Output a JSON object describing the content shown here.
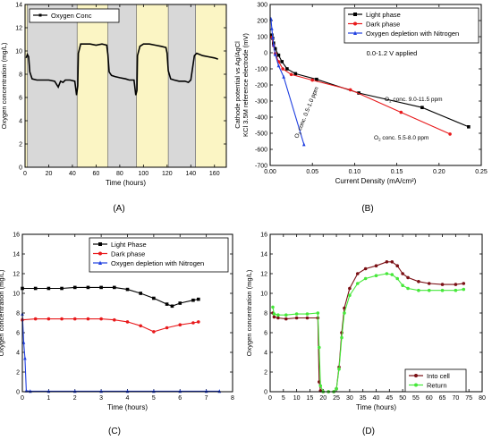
{
  "panel_labels": [
    "(A)",
    "(B)",
    "(C)",
    "(D)"
  ],
  "chart_data": [
    {
      "type": "line",
      "xlabel": "Time (hours)",
      "ylabel": "Oxygen concentration (mg/L)",
      "xlim": [
        0,
        170
      ],
      "ylim": [
        0,
        14
      ],
      "xticks": [
        0,
        20,
        40,
        60,
        80,
        100,
        120,
        140,
        160
      ],
      "yticks": [
        0,
        2,
        4,
        6,
        8,
        10,
        12,
        14
      ],
      "legend": {
        "position": "top-left",
        "entries": [
          "Oxygen Conc"
        ]
      },
      "bands": [
        {
          "from": 0,
          "to": 2,
          "color": "#fbf5c4"
        },
        {
          "from": 2,
          "to": 44,
          "color": "#d8d8d8"
        },
        {
          "from": 44,
          "to": 70,
          "color": "#fbf5c4"
        },
        {
          "from": 70,
          "to": 94,
          "color": "#d8d8d8"
        },
        {
          "from": 94,
          "to": 121,
          "color": "#fbf5c4"
        },
        {
          "from": 121,
          "to": 144,
          "color": "#d8d8d8"
        },
        {
          "from": 144,
          "to": 170,
          "color": "#fbf5c4"
        }
      ],
      "series": [
        {
          "name": "Oxygen Conc",
          "color": "#000000",
          "x": [
            1,
            2,
            3,
            4,
            6,
            10,
            15,
            20,
            25,
            28,
            30,
            32,
            34,
            38,
            42,
            43.5,
            44.5,
            45,
            47,
            50,
            55,
            60,
            65,
            69,
            70,
            71,
            73,
            76,
            80,
            85,
            88,
            92,
            93.5,
            94.5,
            95,
            97,
            100,
            105,
            110,
            115,
            119,
            120,
            121,
            123,
            126,
            130,
            135,
            138,
            140,
            143,
            145,
            150,
            155,
            160,
            163
          ],
          "y": [
            9.4,
            9.7,
            9.5,
            8.2,
            7.6,
            7.5,
            7.5,
            7.5,
            7.4,
            6.9,
            7.4,
            7.3,
            7.5,
            7.5,
            7.4,
            6.2,
            7.0,
            9.8,
            10.6,
            10.6,
            10.6,
            10.5,
            10.6,
            10.5,
            9.7,
            8.2,
            7.9,
            7.8,
            7.7,
            7.6,
            7.5,
            7.5,
            6.2,
            6.6,
            9.6,
            10.4,
            10.6,
            10.6,
            10.5,
            10.4,
            10.3,
            9.8,
            8.3,
            7.6,
            7.5,
            7.4,
            7.4,
            7.3,
            7.5,
            9.6,
            9.8,
            9.6,
            9.5,
            9.4,
            9.3
          ]
        }
      ]
    },
    {
      "type": "line",
      "xlabel": "Current Density (mA/cm²)",
      "ylabel": "Cathode potential vs Ag/AgCl KCl 3.5M reference electrode (mV)",
      "ylabel_lines": [
        "Cathode potential vs Ag/AgCl",
        "KCl 3.5M reference electrode (mV)"
      ],
      "xlim": [
        0,
        0.25
      ],
      "ylim": [
        -700,
        300
      ],
      "xticks": [
        0.0,
        0.05,
        0.1,
        0.15,
        0.2,
        0.25
      ],
      "xtick_labels": [
        "0.00",
        "0.05",
        "0.10",
        "0.15",
        "0.20",
        "0.25"
      ],
      "yticks": [
        -700,
        -600,
        -500,
        -400,
        -300,
        -200,
        -100,
        0,
        100,
        200,
        300
      ],
      "legend": {
        "position": "top-right",
        "entries": [
          "Light phase",
          "Dark phase",
          "Oxygen depletion with Nitrogen"
        ]
      },
      "annotations": [
        "0.0-1.2 V applied",
        "O₂ conc. 9.0-11.5 ppm",
        "O₂ conc. 0.5-1.0 ppm",
        "O₂ conc. 5.5-8.0 ppm"
      ],
      "series": [
        {
          "name": "Light phase",
          "color": "#000000",
          "marker": "square",
          "x": [
            0.002,
            0.003,
            0.004,
            0.006,
            0.01,
            0.014,
            0.02,
            0.03,
            0.055,
            0.105,
            0.18,
            0.235
          ],
          "y": [
            110,
            90,
            60,
            25,
            -15,
            -55,
            -100,
            -130,
            -165,
            -250,
            -340,
            -460
          ]
        },
        {
          "name": "Dark phase",
          "color": "#e8191b",
          "marker": "circle",
          "x": [
            0.002,
            0.004,
            0.006,
            0.01,
            0.015,
            0.025,
            0.05,
            0.095,
            0.155,
            0.213
          ],
          "y": [
            95,
            45,
            -5,
            -55,
            -100,
            -135,
            -170,
            -230,
            -370,
            -505
          ]
        },
        {
          "name": "Oxygen depletion with Nitrogen",
          "color": "#1f3fe0",
          "marker": "triangle",
          "x": [
            0.001,
            0.002,
            0.003,
            0.004,
            0.006,
            0.01,
            0.016,
            0.04
          ],
          "y": [
            210,
            150,
            95,
            50,
            -10,
            -80,
            -150,
            -570
          ]
        }
      ]
    },
    {
      "type": "line",
      "xlabel": "Time (hours)",
      "ylabel": "Oxygen concentration (mg/L)",
      "xlim": [
        0,
        8
      ],
      "ylim": [
        0,
        16
      ],
      "xticks": [
        0,
        1,
        2,
        3,
        4,
        5,
        6,
        7,
        8
      ],
      "yticks": [
        0,
        2,
        4,
        6,
        8,
        10,
        12,
        14,
        16
      ],
      "legend": {
        "position": "top-center",
        "entries": [
          "Light Phase",
          "Dark phase",
          "Oxygen depletion with Nitrogen"
        ]
      },
      "series": [
        {
          "name": "Light Phase",
          "color": "#000000",
          "marker": "square",
          "x": [
            0,
            0.5,
            1,
            1.5,
            2,
            2.5,
            3,
            3.5,
            4,
            4.5,
            5,
            5.5,
            5.7,
            6,
            6.5,
            6.7
          ],
          "y": [
            10.5,
            10.5,
            10.5,
            10.5,
            10.6,
            10.6,
            10.6,
            10.6,
            10.4,
            10.0,
            9.5,
            8.9,
            8.7,
            9.0,
            9.3,
            9.4
          ]
        },
        {
          "name": "Dark phase",
          "color": "#e8191b",
          "marker": "circle",
          "x": [
            0,
            0.5,
            1,
            1.5,
            2,
            2.5,
            3,
            3.5,
            4,
            4.5,
            5,
            5.5,
            6,
            6.5,
            6.7
          ],
          "y": [
            7.3,
            7.4,
            7.4,
            7.4,
            7.4,
            7.4,
            7.4,
            7.3,
            7.1,
            6.7,
            6.1,
            6.5,
            6.8,
            7.0,
            7.1
          ]
        },
        {
          "name": "Oxygen depletion with Nitrogen",
          "color": "#1f3fe0",
          "marker": "triangle",
          "x": [
            0,
            0.05,
            0.1,
            0.15,
            0.3,
            1,
            2,
            3,
            4,
            5,
            6,
            7,
            7.5
          ],
          "y": [
            7.9,
            5.0,
            3.4,
            0.1,
            0.05,
            0.05,
            0.05,
            0.05,
            0.05,
            0.05,
            0.05,
            0.05,
            0.05
          ]
        }
      ]
    },
    {
      "type": "line",
      "xlabel": "Time (hours)",
      "ylabel": "Oxygen concentration (mg/L)",
      "xlim": [
        0,
        80
      ],
      "ylim": [
        0,
        16
      ],
      "xticks": [
        0,
        5,
        10,
        15,
        20,
        25,
        30,
        35,
        40,
        45,
        50,
        55,
        60,
        65,
        70,
        75,
        80
      ],
      "yticks": [
        0,
        2,
        4,
        6,
        8,
        10,
        12,
        14,
        16
      ],
      "legend": {
        "position": "bottom-right",
        "entries": [
          "Into cell",
          "Return"
        ]
      },
      "series": [
        {
          "name": "Into cell",
          "color": "#7a0f14",
          "marker": "circle",
          "x": [
            1,
            1.5,
            3,
            6,
            10,
            14,
            18,
            18.5,
            19,
            20,
            22,
            24,
            25,
            26,
            27,
            28,
            30,
            33,
            36,
            40,
            44,
            46,
            48,
            50,
            52,
            56,
            60,
            65,
            70,
            73
          ],
          "y": [
            8.0,
            7.6,
            7.5,
            7.4,
            7.5,
            7.5,
            7.5,
            1.0,
            0.1,
            0.0,
            0.0,
            0.0,
            0.3,
            2.5,
            6.0,
            8.5,
            10.5,
            12.0,
            12.5,
            12.8,
            13.2,
            13.2,
            12.8,
            12.0,
            11.6,
            11.2,
            11.0,
            10.9,
            10.9,
            11.0
          ]
        },
        {
          "name": "Return",
          "color": "#46e83a",
          "marker": "circle",
          "x": [
            1,
            1.5,
            3,
            6,
            10,
            14,
            18,
            18.5,
            19,
            20,
            22,
            24,
            25,
            26,
            27,
            28,
            30,
            33,
            36,
            40,
            44,
            46,
            48,
            50,
            52,
            56,
            60,
            65,
            70,
            73
          ],
          "y": [
            8.6,
            7.9,
            7.8,
            7.8,
            7.9,
            7.9,
            8.0,
            4.5,
            0.6,
            0.0,
            0.0,
            0.0,
            0.3,
            2.3,
            5.5,
            8.0,
            9.8,
            11.0,
            11.5,
            11.8,
            12.0,
            11.9,
            11.5,
            10.8,
            10.5,
            10.3,
            10.3,
            10.3,
            10.3,
            10.4
          ]
        }
      ]
    }
  ]
}
